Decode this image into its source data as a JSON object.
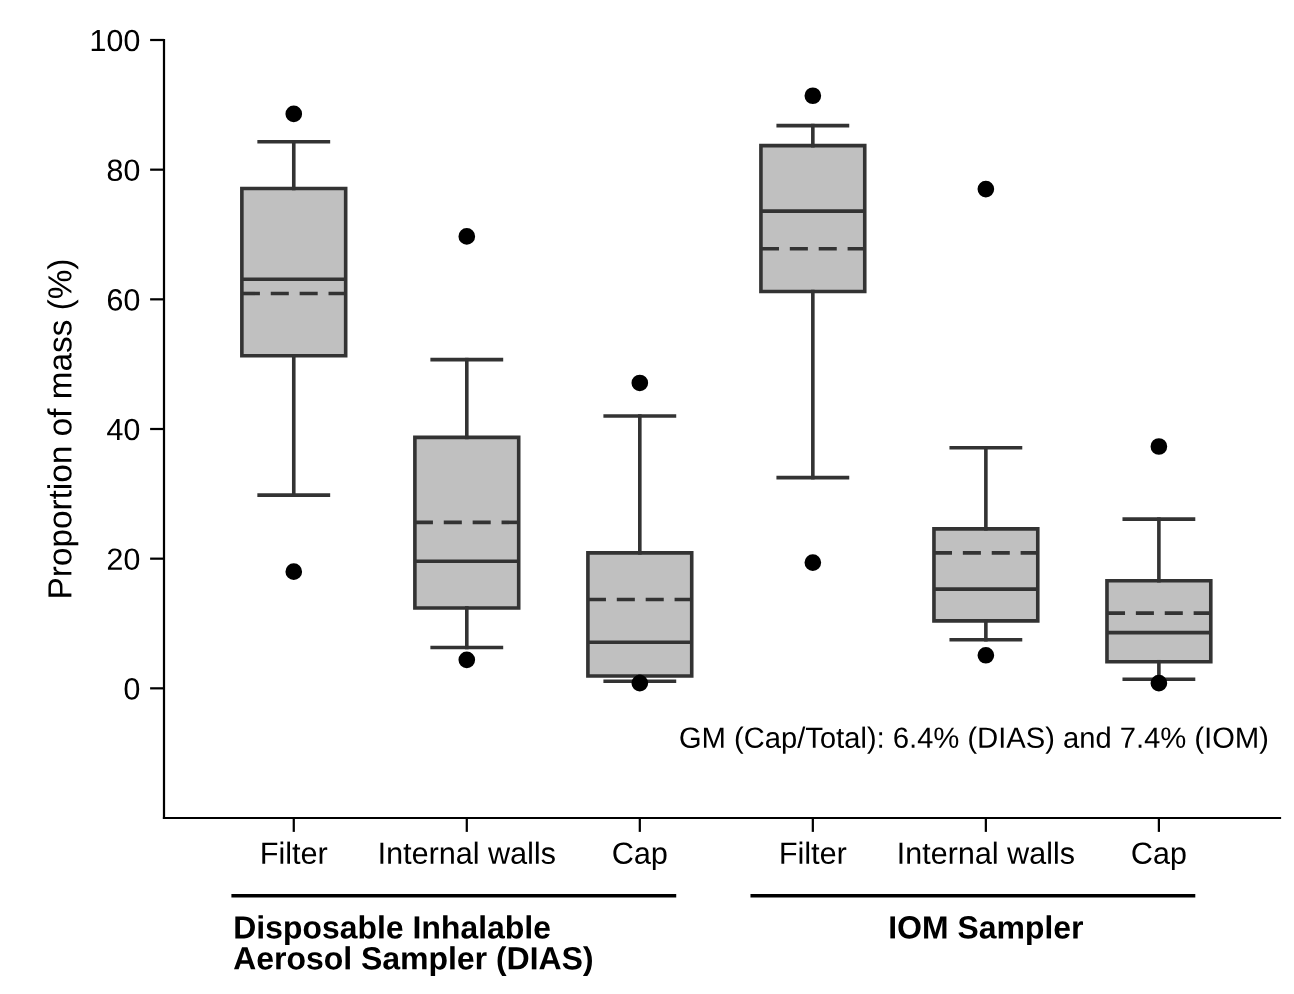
{
  "chart_data": {
    "type": "box",
    "ylabel": "Proportion of mass (%)",
    "categories": [
      "Filter",
      "Internal walls",
      "Cap",
      "Filter",
      "Internal walls",
      "Cap"
    ],
    "boxes": [
      {
        "low": 29.8,
        "q1": 51.3,
        "median": 63.1,
        "q3": 77.1,
        "high": 84.3,
        "mean": 60.9,
        "outliers": [
          88.6,
          18.0
        ]
      },
      {
        "low": 6.3,
        "q1": 12.4,
        "median": 19.6,
        "q3": 38.7,
        "high": 50.7,
        "mean": 25.6,
        "outliers": [
          69.7,
          4.4
        ]
      },
      {
        "low": 1.1,
        "q1": 1.9,
        "median": 7.1,
        "q3": 20.9,
        "high": 42.0,
        "mean": 13.7,
        "outliers": [
          47.1,
          0.8
        ]
      },
      {
        "low": 32.5,
        "q1": 61.2,
        "median": 73.6,
        "q3": 83.7,
        "high": 86.8,
        "mean": 67.8,
        "outliers": [
          91.4,
          19.4
        ]
      },
      {
        "low": 7.5,
        "q1": 10.4,
        "median": 15.3,
        "q3": 24.6,
        "high": 37.1,
        "mean": 20.9,
        "outliers": [
          77.0,
          5.1
        ]
      },
      {
        "low": 1.4,
        "q1": 4.1,
        "median": 8.6,
        "q3": 16.6,
        "high": 26.1,
        "mean": 11.6,
        "outliers": [
          37.3,
          0.8
        ]
      }
    ],
    "color": "#c0c0c0",
    "ylim": [
      -20,
      100
    ],
    "yticks": [
      0,
      20,
      40,
      60,
      80,
      100
    ],
    "grid": false,
    "annotations": [
      "GM (Cap/Total): 6.4% (DIAS) and 7.4% (IOM)",
      "Disposable Inhalable\nAerosol Sampler (DIAS)",
      "IOM Sampler"
    ]
  }
}
